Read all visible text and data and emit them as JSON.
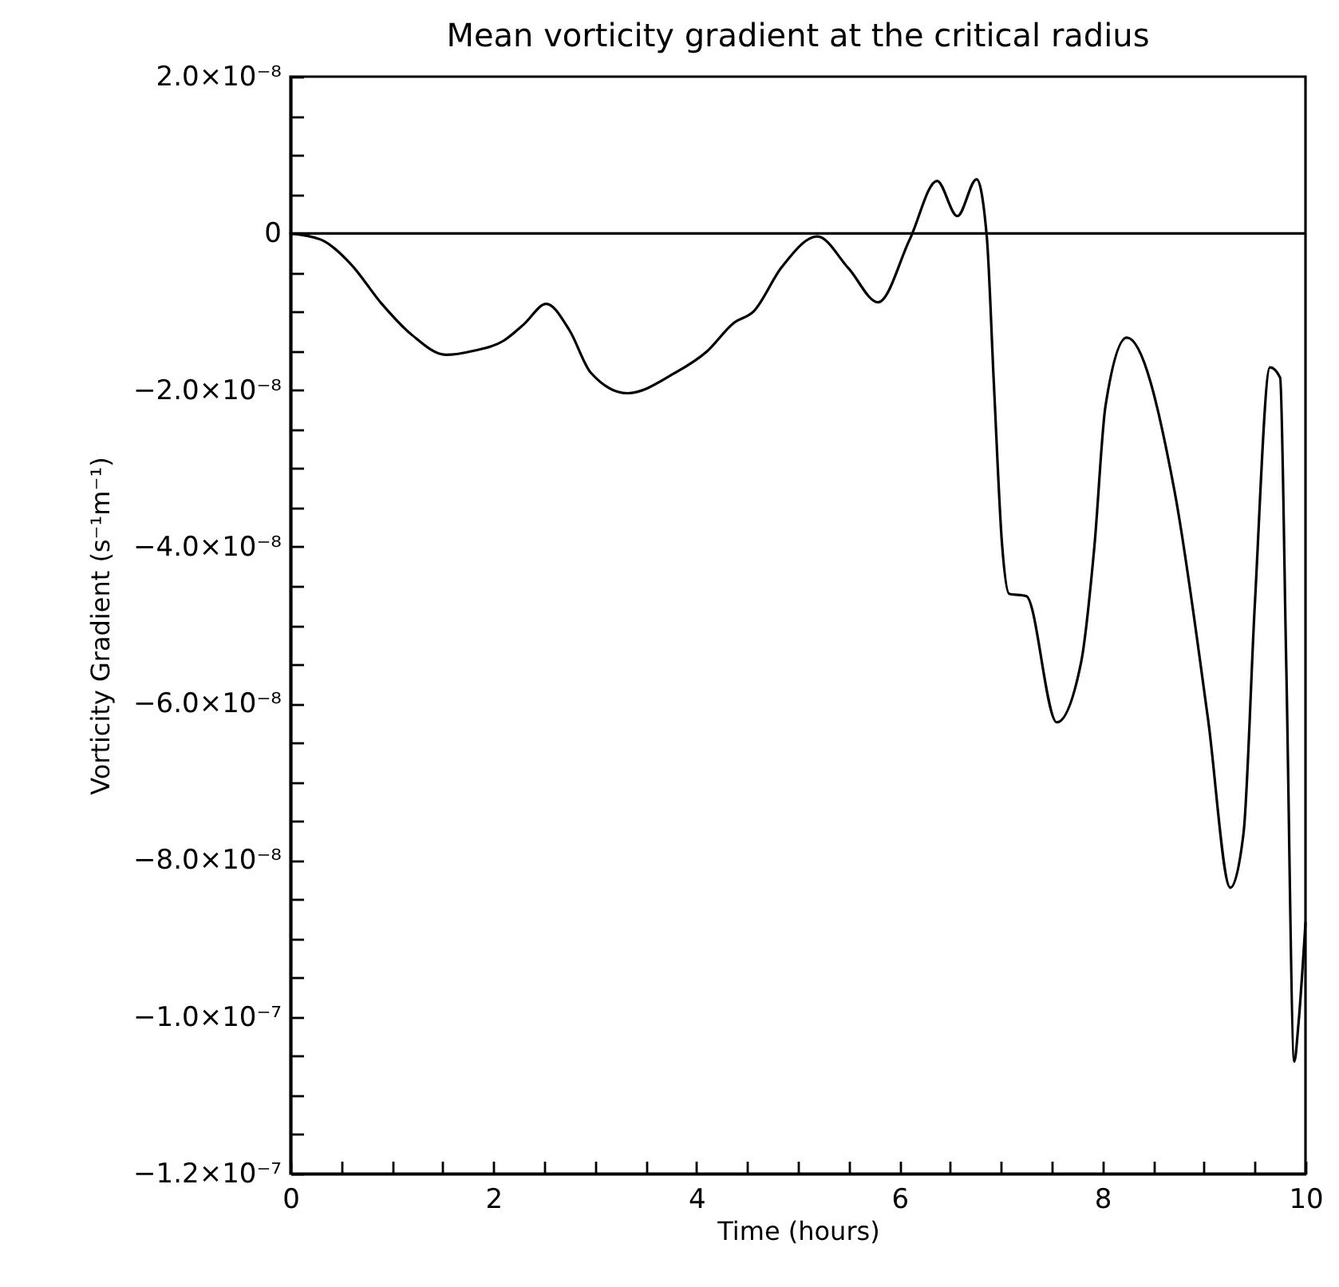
{
  "chart_data": {
    "type": "line",
    "title": "Mean vorticity gradient at the critical radius",
    "xlabel": "Time (hours)",
    "ylabel": "Vorticity Gradient (s⁻¹m⁻¹)",
    "x": [
      0,
      0.3,
      0.6,
      0.9,
      1.2,
      1.53,
      1.8,
      2.1,
      2.3,
      2.52,
      2.75,
      2.96,
      3.32,
      3.79,
      4.1,
      4.37,
      4.56,
      4.84,
      5.19,
      5.5,
      5.79,
      6.1,
      6.37,
      6.57,
      6.76,
      6.86,
      6.93,
      7.01,
      7.08,
      7.25,
      7.55,
      7.79,
      7.92,
      8.03,
      8.24,
      8.71,
      9.04,
      9.26,
      9.39,
      9.5,
      9.65,
      9.75,
      9.81,
      9.89,
      9.93,
      10.0
    ],
    "series": [
      {
        "color": "#000000",
        "values": [
          0,
          -8e-10,
          -4e-09,
          -9e-09,
          -1.3e-08,
          -1.55e-08,
          -1.5e-08,
          -1.37e-08,
          -1.16e-08,
          -9e-09,
          -1.24e-08,
          -1.78e-08,
          -2.04e-08,
          -1.78e-08,
          -1.51e-08,
          -1.14e-08,
          -1e-08,
          -4.3e-09,
          -4e-10,
          -4.5e-09,
          -8.8e-09,
          -8e-10,
          6.7e-09,
          2.2e-09,
          6.9e-09,
          -4e-10,
          -1.92e-08,
          -3.96e-08,
          -4.6e-08,
          -4.63e-08,
          -6.24e-08,
          -5.47e-08,
          -4e-08,
          -2.2e-08,
          -1.33e-08,
          -3.29e-08,
          -6.2e-08,
          -8.35e-08,
          -7.65e-08,
          -4.76e-08,
          -1.71e-08,
          -1.84e-08,
          -5.47e-08,
          -1.057e-07,
          -1.01e-07,
          -8.8e-08
        ]
      }
    ],
    "xlim": [
      0,
      10
    ],
    "xticks": [
      0,
      {
        "value": 0.5,
        "label": null
      },
      2,
      {
        "value": 1,
        "label": null
      },
      {
        "value": 1.5,
        "label": null
      },
      {
        "value": 2.5,
        "label": null
      },
      {
        "value": 3,
        "label": null
      },
      {
        "value": 3.5,
        "label": null
      },
      4,
      {
        "value": 4.5,
        "label": null
      },
      {
        "value": 5,
        "label": null
      },
      {
        "value": 5.5,
        "label": null
      },
      6,
      {
        "value": 6.5,
        "label": null
      },
      {
        "value": 7,
        "label": null
      },
      {
        "value": 7.5,
        "label": null
      },
      8,
      {
        "value": 8.5,
        "label": null
      },
      {
        "value": 9,
        "label": null
      },
      {
        "value": 9.5,
        "label": null
      },
      10
    ],
    "ylim": [
      -1.2e-07,
      2e-08
    ],
    "yticks": [
      {
        "value": 2e-08,
        "label": "2.0×10⁻⁸"
      },
      {
        "value": 1.5e-08,
        "label": null
      },
      {
        "value": 1e-08,
        "label": null
      },
      {
        "value": 5e-09,
        "label": null
      },
      {
        "value": 0,
        "label": "0"
      },
      {
        "value": -5e-09,
        "label": null
      },
      {
        "value": -1e-08,
        "label": null
      },
      {
        "value": -1.5e-08,
        "label": null
      },
      {
        "value": -2e-08,
        "label": "−2.0×10⁻⁸"
      },
      {
        "value": -2.5e-08,
        "label": null
      },
      {
        "value": -3e-08,
        "label": null
      },
      {
        "value": -3.5e-08,
        "label": null
      },
      {
        "value": -4e-08,
        "label": "−4.0×10⁻⁸"
      },
      {
        "value": -4.5e-08,
        "label": null
      },
      {
        "value": -5e-08,
        "label": null
      },
      {
        "value": -5.5e-08,
        "label": null
      },
      {
        "value": -6e-08,
        "label": "−6.0×10⁻⁸"
      },
      {
        "value": -6.5e-08,
        "label": null
      },
      {
        "value": -7e-08,
        "label": null
      },
      {
        "value": -7.5e-08,
        "label": null
      },
      {
        "value": -8e-08,
        "label": "−8.0×10⁻⁸"
      },
      {
        "value": -8.5e-08,
        "label": null
      },
      {
        "value": -9e-08,
        "label": null
      },
      {
        "value": -9.5e-08,
        "label": null
      },
      {
        "value": -1e-07,
        "label": "−1.0×10⁻⁷"
      },
      {
        "value": -1.05e-07,
        "label": null
      },
      {
        "value": -1.1e-07,
        "label": null
      },
      {
        "value": -1.15e-07,
        "label": null
      },
      {
        "value": -1.2e-07,
        "label": "−1.2×10⁻⁷"
      }
    ],
    "ref_lines": [
      {
        "axis": "y",
        "value": 0,
        "color": "#000000"
      }
    ],
    "grid": false,
    "legend": false,
    "marker": "none",
    "line_style": "solid"
  }
}
